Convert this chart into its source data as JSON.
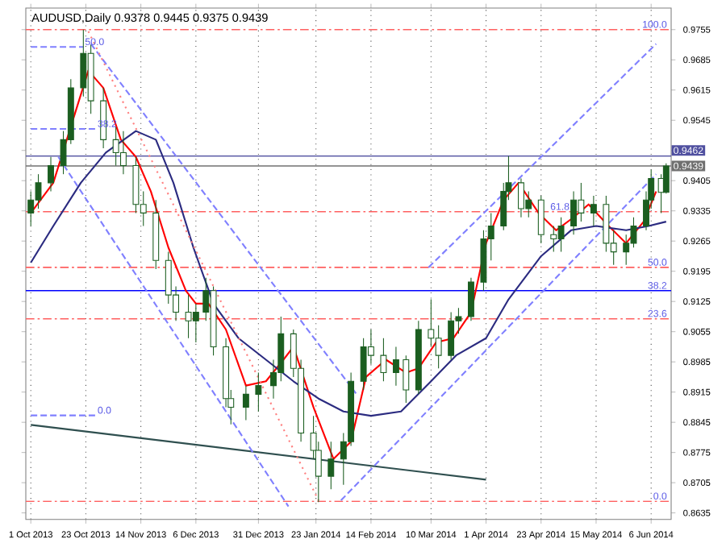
{
  "chart_data": {
    "type": "candlestick",
    "title": "AUDUSD,Daily 0.9378 0.9445 0.9375 0.9439",
    "color": "#1b5e20",
    "x": [
      "2013-10-01",
      "2013-10-04",
      "2013-10-09",
      "2013-10-14",
      "2013-10-17",
      "2013-10-22",
      "2013-10-25",
      "2013-10-30",
      "2013-11-04",
      "2013-11-07",
      "2013-11-12",
      "2013-11-15",
      "2013-11-20",
      "2013-11-25",
      "2013-11-28",
      "2013-12-03",
      "2013-12-06",
      "2013-12-10",
      "2013-12-13",
      "2013-12-18",
      "2013-12-20",
      "2013-12-26",
      "2013-12-31",
      "2014-01-06",
      "2014-01-09",
      "2014-01-14",
      "2014-01-17",
      "2014-01-22",
      "2014-01-24",
      "2014-01-29",
      "2014-02-03",
      "2014-02-06",
      "2014-02-11",
      "2014-02-14",
      "2014-02-19",
      "2014-02-24",
      "2014-02-28",
      "2014-03-05",
      "2014-03-10",
      "2014-03-13",
      "2014-03-18",
      "2014-03-21",
      "2014-03-26",
      "2014-03-31",
      "2014-04-03",
      "2014-04-08",
      "2014-04-10",
      "2014-04-15",
      "2014-04-18",
      "2014-04-23",
      "2014-04-28",
      "2014-05-01",
      "2014-05-06",
      "2014-05-09",
      "2014-05-14",
      "2014-05-19",
      "2014-05-22",
      "2014-05-27",
      "2014-05-30",
      "2014-06-04",
      "2014-06-06",
      "2014-06-10",
      "2014-06-12"
    ],
    "ohlc": [
      [
        0.933,
        0.938,
        0.93,
        0.936
      ],
      [
        0.936,
        0.942,
        0.934,
        0.94
      ],
      [
        0.94,
        0.946,
        0.938,
        0.944
      ],
      [
        0.944,
        0.952,
        0.942,
        0.95
      ],
      [
        0.95,
        0.964,
        0.949,
        0.962
      ],
      [
        0.962,
        0.9755,
        0.96,
        0.97
      ],
      [
        0.97,
        0.972,
        0.956,
        0.959
      ],
      [
        0.959,
        0.962,
        0.948,
        0.95
      ],
      [
        0.95,
        0.953,
        0.944,
        0.947
      ],
      [
        0.947,
        0.952,
        0.942,
        0.944
      ],
      [
        0.944,
        0.946,
        0.933,
        0.935
      ],
      [
        0.935,
        0.938,
        0.93,
        0.933
      ],
      [
        0.933,
        0.936,
        0.92,
        0.922
      ],
      [
        0.922,
        0.924,
        0.912,
        0.914
      ],
      [
        0.914,
        0.916,
        0.908,
        0.91
      ],
      [
        0.91,
        0.914,
        0.904,
        0.908
      ],
      [
        0.908,
        0.912,
        0.903,
        0.91
      ],
      [
        0.91,
        0.918,
        0.908,
        0.915
      ],
      [
        0.915,
        0.916,
        0.9,
        0.902
      ],
      [
        0.902,
        0.904,
        0.888,
        0.89
      ],
      [
        0.89,
        0.892,
        0.884,
        0.888
      ],
      [
        0.888,
        0.893,
        0.885,
        0.891
      ],
      [
        0.891,
        0.896,
        0.887,
        0.893
      ],
      [
        0.893,
        0.899,
        0.89,
        0.896
      ],
      [
        0.896,
        0.909,
        0.894,
        0.905
      ],
      [
        0.905,
        0.906,
        0.895,
        0.897
      ],
      [
        0.897,
        0.899,
        0.88,
        0.882
      ],
      [
        0.882,
        0.886,
        0.876,
        0.878
      ],
      [
        0.878,
        0.88,
        0.866,
        0.872
      ],
      [
        0.872,
        0.88,
        0.869,
        0.876
      ],
      [
        0.876,
        0.882,
        0.87,
        0.88
      ],
      [
        0.88,
        0.896,
        0.879,
        0.894
      ],
      [
        0.894,
        0.904,
        0.892,
        0.902
      ],
      [
        0.902,
        0.906,
        0.898,
        0.9
      ],
      [
        0.9,
        0.904,
        0.894,
        0.896
      ],
      [
        0.896,
        0.902,
        0.893,
        0.899
      ],
      [
        0.899,
        0.9,
        0.889,
        0.892
      ],
      [
        0.892,
        0.908,
        0.891,
        0.906
      ],
      [
        0.906,
        0.913,
        0.902,
        0.904
      ],
      [
        0.904,
        0.907,
        0.897,
        0.9
      ],
      [
        0.9,
        0.91,
        0.899,
        0.908
      ],
      [
        0.908,
        0.911,
        0.905,
        0.909
      ],
      [
        0.909,
        0.918,
        0.908,
        0.917
      ],
      [
        0.917,
        0.929,
        0.915,
        0.927
      ],
      [
        0.927,
        0.933,
        0.922,
        0.93
      ],
      [
        0.93,
        0.94,
        0.929,
        0.938
      ],
      [
        0.938,
        0.9462,
        0.936,
        0.94
      ],
      [
        0.94,
        0.941,
        0.932,
        0.934
      ],
      [
        0.934,
        0.938,
        0.932,
        0.936
      ],
      [
        0.936,
        0.937,
        0.926,
        0.928
      ],
      [
        0.928,
        0.93,
        0.924,
        0.927
      ],
      [
        0.927,
        0.932,
        0.924,
        0.93
      ],
      [
        0.93,
        0.938,
        0.928,
        0.936
      ],
      [
        0.936,
        0.94,
        0.931,
        0.933
      ],
      [
        0.933,
        0.937,
        0.93,
        0.935
      ],
      [
        0.935,
        0.937,
        0.924,
        0.926
      ],
      [
        0.926,
        0.929,
        0.921,
        0.924
      ],
      [
        0.924,
        0.928,
        0.921,
        0.926
      ],
      [
        0.926,
        0.932,
        0.925,
        0.93
      ],
      [
        0.93,
        0.938,
        0.929,
        0.936
      ],
      [
        0.936,
        0.943,
        0.934,
        0.941
      ],
      [
        0.941,
        0.942,
        0.933,
        0.9378
      ],
      [
        0.9378,
        0.9445,
        0.9375,
        0.9439
      ]
    ],
    "series": [
      {
        "type": "line",
        "color": "#ff0000",
        "line_style": "solid",
        "x": [
          "2013-10-01",
          "2013-10-10",
          "2013-10-17",
          "2013-10-24",
          "2013-10-30",
          "2013-11-06",
          "2013-11-12",
          "2013-11-18",
          "2013-11-25",
          "2013-12-02",
          "2013-12-06",
          "2013-12-11",
          "2013-12-18",
          "2013-12-26",
          "2014-01-03",
          "2014-01-10",
          "2014-01-14",
          "2014-01-22",
          "2014-01-30",
          "2014-02-06",
          "2014-02-12",
          "2014-02-20",
          "2014-02-28",
          "2014-03-05",
          "2014-03-12",
          "2014-03-19",
          "2014-03-26",
          "2014-04-01",
          "2014-04-08",
          "2014-04-14",
          "2014-04-22",
          "2014-04-29",
          "2014-05-06",
          "2014-05-12",
          "2014-05-20",
          "2014-05-27",
          "2014-06-03",
          "2014-06-08"
        ],
        "values": [
          0.933,
          0.94,
          null,
          0.966,
          0.962,
          0.95,
          0.946,
          0.938,
          0.925,
          0.915,
          0.912,
          0.912,
          0.906,
          0.893,
          0.894,
          0.899,
          0.902,
          0.888,
          0.876,
          0.88,
          0.895,
          0.899,
          0.896,
          0.897,
          0.903,
          0.904,
          0.91,
          0.926,
          0.936,
          0.94,
          0.933,
          0.929,
          0.932,
          0.935,
          0.93,
          0.926,
          0.931,
          0.938
        ]
      },
      {
        "type": "line",
        "color": "#2b2b80",
        "line_style": "solid",
        "x": [
          "2013-10-01",
          "2013-10-10",
          "2013-10-21",
          "2013-10-31",
          "2013-11-12",
          "2013-11-20",
          "2013-11-27",
          "2013-12-05",
          "2013-12-13",
          "2013-12-23",
          "2014-01-03",
          "2014-01-14",
          "2014-01-24",
          "2014-02-03",
          "2014-02-14",
          "2014-02-26",
          "2014-03-10",
          "2014-03-20",
          "2014-04-01",
          "2014-04-10",
          "2014-04-23",
          "2014-05-05",
          "2014-05-15",
          "2014-05-27",
          "2014-06-05",
          "2014-06-12"
        ],
        "values": [
          0.9215,
          0.93,
          0.94,
          0.947,
          0.952,
          0.95,
          0.94,
          0.925,
          0.912,
          0.904,
          0.899,
          0.894,
          0.89,
          0.887,
          0.886,
          0.887,
          0.894,
          0.9,
          0.904,
          0.913,
          0.923,
          0.929,
          0.93,
          0.929,
          0.93,
          0.931
        ]
      },
      {
        "type": "line",
        "color": "#2f4f4f",
        "line_style": "solid",
        "x": [
          "2013-10-01",
          "2014-04-01"
        ],
        "values": [
          0.8839,
          0.8712
        ]
      },
      {
        "type": "line",
        "color": "#8080ff",
        "line_style": "dashed",
        "x": [
          "2013-10-25",
          "2014-02-08"
        ],
        "values": [
          0.9722,
          0.8912
        ]
      },
      {
        "type": "line",
        "color": "#8080ff",
        "line_style": "dashed",
        "x": [
          "2013-10-12",
          "2014-01-12"
        ],
        "values": [
          0.946,
          0.865
        ]
      },
      {
        "type": "line",
        "color": "#8080ff",
        "line_style": "dashed",
        "x": [
          "2014-02-02",
          "2014-06-08"
        ],
        "values": [
          0.8664,
          0.942
        ]
      },
      {
        "type": "line",
        "color": "#8080ff",
        "line_style": "dashed",
        "x": [
          "2014-03-09",
          "2014-06-08"
        ],
        "values": [
          0.9204,
          0.9722
        ]
      },
      {
        "type": "line",
        "color": "#ff8080",
        "line_style": "dotted",
        "x": [
          "2013-10-24",
          "2014-01-24"
        ],
        "values": [
          0.9751,
          0.8664
        ]
      },
      {
        "type": "line",
        "color": "#8080ff",
        "line_style": "dashed",
        "x": [
          "2013-10-01",
          "2013-10-22"
        ],
        "values": [
          0.9715,
          0.9715
        ]
      },
      {
        "type": "line",
        "color": "#8080ff",
        "line_style": "dashed",
        "x": [
          "2013-10-01",
          "2013-10-27"
        ],
        "values": [
          0.9525,
          0.9525
        ]
      },
      {
        "type": "line",
        "color": "#8080ff",
        "line_style": "dashed",
        "x": [
          "2013-10-01",
          "2013-10-27"
        ],
        "values": [
          0.8861,
          0.8861
        ]
      }
    ],
    "annotations": [
      {
        "text": "50.0",
        "x": "2013-10-22",
        "y": 0.9715
      },
      {
        "text": "100.0",
        "x": "2014-06-13",
        "y": 0.9755
      },
      {
        "text": "61.8",
        "x": "2014-04-26",
        "y": 0.9333
      },
      {
        "text": "50.0",
        "x": "2014-06-13",
        "y": 0.9204
      },
      {
        "text": "38.2",
        "x": "2014-06-13",
        "y": 0.915
      },
      {
        "text": "23.6",
        "x": "2014-06-13",
        "y": 0.9085
      },
      {
        "text": "0.0",
        "x": "2014-06-13",
        "y": 0.8662
      },
      {
        "text": "38.2",
        "x": "2013-10-27",
        "y": 0.9525
      },
      {
        "text": "0.0",
        "x": "2013-10-27",
        "y": 0.8861
      }
    ],
    "ref_lines": [
      {
        "axis": "y",
        "value": 0.9755,
        "color": "#ff6060",
        "line_style": "dashed"
      },
      {
        "axis": "y",
        "value": 0.9462,
        "label": "0.9462",
        "color": "#5050a0",
        "line_style": "solid"
      },
      {
        "axis": "y",
        "value": 0.9439,
        "label": "0.9439",
        "color": "#707070",
        "line_style": "solid"
      },
      {
        "axis": "y",
        "value": 0.9333,
        "color": "#ff6060",
        "line_style": "dashed"
      },
      {
        "axis": "y",
        "value": 0.9204,
        "color": "#ff6060",
        "line_style": "dashed"
      },
      {
        "axis": "y",
        "value": 0.915,
        "color": "#0000ff",
        "line_style": "solid"
      },
      {
        "axis": "y",
        "value": 0.9085,
        "color": "#ff6060",
        "line_style": "dashed"
      },
      {
        "axis": "y",
        "value": 0.8662,
        "color": "#ff6060",
        "line_style": "dashed"
      }
    ],
    "xlim": [
      "2013-09-29",
      "2014-06-14"
    ],
    "xticks": [
      {
        "value": "2013-10-01",
        "label": "1 Oct 2013"
      },
      {
        "value": "2013-10-23",
        "label": "23 Oct 2013"
      },
      {
        "value": "2013-11-14",
        "label": "14 Nov 2013"
      },
      {
        "value": "2013-12-06",
        "label": "6 Dec 2013"
      },
      {
        "value": "2013-12-31",
        "label": "31 Dec 2013"
      },
      {
        "value": "2014-01-23",
        "label": "23 Jan 2014"
      },
      {
        "value": "2014-02-14",
        "label": "14 Feb 2014"
      },
      {
        "value": "2014-03-10",
        "label": "10 Mar 2014"
      },
      {
        "value": "2014-04-01",
        "label": "1 Apr 2014"
      },
      {
        "value": "2014-04-23",
        "label": "23 Apr 2014"
      },
      {
        "value": "2014-05-15",
        "label": "15 May 2014"
      },
      {
        "value": "2014-06-06",
        "label": "6 Jun 2014"
      }
    ],
    "ylim": [
      0.862,
      0.9805
    ],
    "yticks": [
      0.8635,
      0.8705,
      0.8775,
      0.8845,
      0.8915,
      0.8985,
      0.9055,
      0.9125,
      0.9195,
      0.9265,
      0.9335,
      0.9405,
      {
        "value": 0.9475,
        "label": null
      },
      0.9545,
      0.9615,
      0.9685,
      0.9755
    ],
    "grid": "x",
    "marker": "none"
  }
}
